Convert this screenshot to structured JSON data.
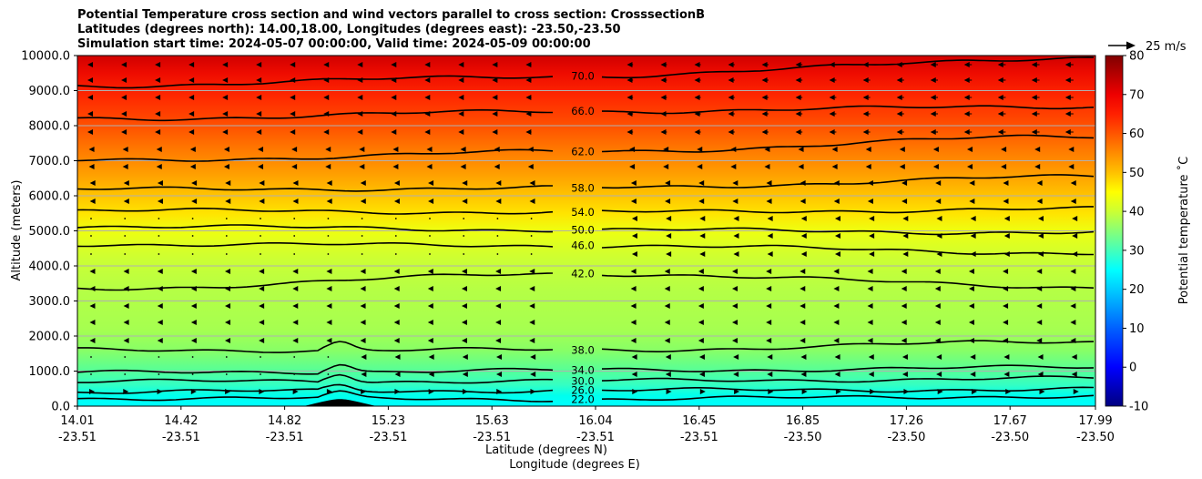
{
  "title": {
    "line1": "Potential Temperature cross section and wind vectors parallel to cross section: CrosssectionB",
    "line2": "Latitudes (degrees north): 14.00,18.00, Longitudes (degrees east): -23.50,-23.50",
    "line3": "Simulation start time: 2024-05-07 00:00:00, Valid time: 2024-05-09 00:00:00"
  },
  "chart_data": {
    "type": "heatmap",
    "subtype": "filled contour cross section with contour lines and wind vectors",
    "xlabel": "Latitude (degrees N)",
    "xlabel2": "Longitude (degrees E)",
    "ylabel": "Altitude (meters)",
    "ylim": [
      0,
      10000
    ],
    "yticks": [
      "0.0",
      "1000.0",
      "2000.0",
      "3000.0",
      "4000.0",
      "5000.0",
      "6000.0",
      "7000.0",
      "8000.0",
      "9000.0",
      "10000.0"
    ],
    "xticks": [
      {
        "lat": "14.01",
        "lon": "-23.51"
      },
      {
        "lat": "14.42",
        "lon": "-23.51"
      },
      {
        "lat": "14.82",
        "lon": "-23.51"
      },
      {
        "lat": "15.23",
        "lon": "-23.51"
      },
      {
        "lat": "15.63",
        "lon": "-23.51"
      },
      {
        "lat": "16.04",
        "lon": "-23.51"
      },
      {
        "lat": "16.45",
        "lon": "-23.51"
      },
      {
        "lat": "16.85",
        "lon": "-23.50"
      },
      {
        "lat": "17.26",
        "lon": "-23.50"
      },
      {
        "lat": "17.67",
        "lon": "-23.50"
      },
      {
        "lat": "17.99",
        "lon": "-23.50"
      }
    ],
    "grid": true,
    "colorbar": {
      "label": "Potential temperature ˚C",
      "ticks": [
        "-10",
        "0",
        "10",
        "20",
        "30",
        "40",
        "50",
        "60",
        "70",
        "80"
      ],
      "range": [
        -10,
        80
      ],
      "colormap": "jet"
    },
    "quiver_key": "25 m/s",
    "contours": [
      {
        "value": 22.0,
        "label": "22.0",
        "left_alt": 230,
        "mid_alt": 200,
        "right_alt": 290
      },
      {
        "value": 26.0,
        "label": "26.0",
        "left_alt": 410,
        "mid_alt": 450,
        "right_alt": 480
      },
      {
        "value": 30.0,
        "label": "30.0",
        "left_alt": 700,
        "mid_alt": 720,
        "right_alt": 790
      },
      {
        "value": 34.0,
        "label": "34.0",
        "left_alt": 950,
        "mid_alt": 1020,
        "right_alt": 1100
      },
      {
        "value": 38.0,
        "label": "38.0",
        "left_alt": 1600,
        "mid_alt": 1600,
        "right_alt": 1840
      },
      {
        "value": 42.0,
        "label": "42.0",
        "left_alt": 3350,
        "mid_alt": 3780,
        "right_alt": 3400
      },
      {
        "value": 46.0,
        "label": "46.0",
        "left_alt": 4620,
        "mid_alt": 4580,
        "right_alt": 4370
      },
      {
        "value": 50.0,
        "label": "50.0",
        "left_alt": 5130,
        "mid_alt": 5030,
        "right_alt": 4950
      },
      {
        "value": 54.0,
        "label": "54.0",
        "left_alt": 5580,
        "mid_alt": 5530,
        "right_alt": 5620
      },
      {
        "value": 58.0,
        "label": "58.0",
        "left_alt": 6180,
        "mid_alt": 6220,
        "right_alt": 6540
      },
      {
        "value": 62.0,
        "label": "62.0",
        "left_alt": 6990,
        "mid_alt": 7260,
        "right_alt": 7700
      },
      {
        "value": 66.0,
        "label": "66.0",
        "left_alt": 8190,
        "mid_alt": 8410,
        "right_alt": 8550
      },
      {
        "value": 70.0,
        "label": "70.0",
        "left_alt": 9140,
        "mid_alt": 9420,
        "right_alt": 9950
      }
    ],
    "terrain": {
      "color": "#000000",
      "peak_lat": "15.05",
      "peak_alt": 200
    }
  }
}
